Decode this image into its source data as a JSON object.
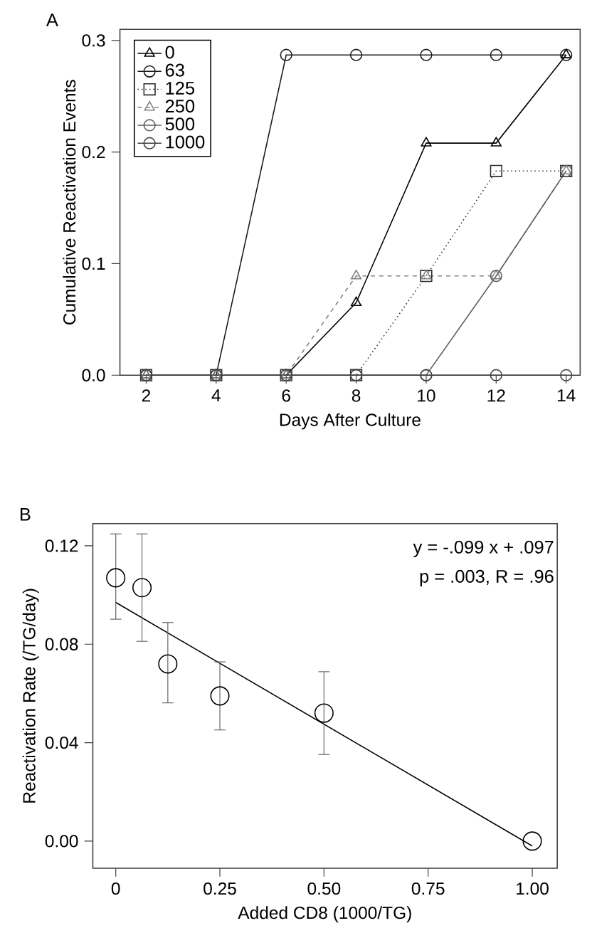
{
  "chart_data": [
    {
      "type": "line",
      "title": "A",
      "xlabel": "Days After Culture",
      "ylabel": "Cumulative Reactivation Events",
      "x": [
        2,
        4,
        6,
        8,
        10,
        12,
        14
      ],
      "series": [
        {
          "name": "0",
          "color": "#000000",
          "marker": "triangle",
          "line_style": "solid",
          "values": [
            0,
            0,
            0,
            0.065,
            0.208,
            0.208,
            0.287
          ]
        },
        {
          "name": "63",
          "color": "#1a1a1a",
          "marker": "circle",
          "line_style": "solid",
          "values": [
            0,
            0,
            0.287,
            0.287,
            0.287,
            0.287,
            0.287
          ]
        },
        {
          "name": "125",
          "color": "#2e2e2e",
          "marker": "square",
          "line_style": "dotted",
          "values": [
            0,
            0,
            0,
            0,
            0.089,
            0.183,
            0.183
          ]
        },
        {
          "name": "250",
          "color": "#808080",
          "marker": "triangle",
          "line_style": "dashed",
          "values": [
            0,
            0,
            0,
            0.089,
            0.089,
            0.089,
            0.183
          ]
        },
        {
          "name": "500",
          "color": "#606060",
          "marker": "circle",
          "line_style": "solid",
          "values": [
            0,
            0,
            0,
            0,
            0,
            0.089,
            0.183
          ]
        },
        {
          "name": "1000",
          "color": "#404040",
          "marker": "circle",
          "line_style": "solid",
          "values": [
            0,
            0,
            0,
            0,
            0,
            0,
            0
          ]
        }
      ],
      "xlim": [
        1.25,
        14.4
      ],
      "ylim": [
        0,
        0.31
      ],
      "xticks": [
        2,
        4,
        6,
        8,
        10,
        12,
        14
      ],
      "yticks": [
        {
          "value": 0,
          "label": "0.0"
        },
        {
          "value": 0.1,
          "label": "0.1"
        },
        {
          "value": 0.2,
          "label": "0.2"
        },
        {
          "value": 0.3,
          "label": "0.3"
        }
      ],
      "legend": "top left"
    },
    {
      "type": "scatter",
      "title": "B",
      "xlabel": "Added CD8 (1000/TG)",
      "ylabel": "Reactivation Rate (/TG/day)",
      "series": [
        {
          "type": "scatter",
          "color": "#000000",
          "marker": "circle",
          "x": [
            0,
            0.063,
            0.125,
            0.25,
            0.5,
            1.0
          ],
          "values": [
            0.107,
            0.103,
            0.072,
            0.059,
            0.052,
            0
          ],
          "errors": [
            [
              0.09,
              0.125
            ],
            [
              0.081,
              0.125
            ],
            [
              0.056,
              0.089
            ],
            [
              0.045,
              0.073
            ],
            [
              0.035,
              0.069
            ],
            null
          ]
        },
        {
          "type": "line",
          "color": "#000000",
          "marker": "none",
          "line_style": "solid",
          "x": [
            0,
            1.0
          ],
          "values": [
            0.097,
            -0.002
          ]
        }
      ],
      "xlim": [
        -0.055,
        1.06
      ],
      "ylim": [
        -0.011,
        0.129
      ],
      "xticks": [
        {
          "value": 0,
          "label": "0"
        },
        {
          "value": 0.25,
          "label": "0.25"
        },
        {
          "value": 0.5,
          "label": "0.50"
        },
        {
          "value": 0.75,
          "label": "0.75"
        },
        {
          "value": 1.0,
          "label": "1.00"
        }
      ],
      "yticks": [
        {
          "value": 0,
          "label": "0.00"
        },
        {
          "value": 0.04,
          "label": "0.04"
        },
        {
          "value": 0.08,
          "label": "0.08"
        },
        {
          "value": 0.12,
          "label": "0.12"
        }
      ],
      "annotations": [
        "y = -.099 x + .097",
        "p = .003, R = .96"
      ]
    }
  ]
}
